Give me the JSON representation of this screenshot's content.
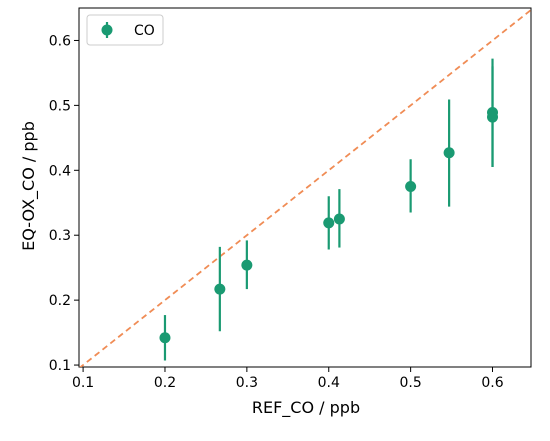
{
  "chart_data": {
    "type": "scatter",
    "title": "",
    "xlabel": "REF_CO / ppb",
    "ylabel": "EQ-OX_CO / ppb",
    "xlim": [
      0.095,
      0.647
    ],
    "ylim": [
      0.097,
      0.65
    ],
    "xticks": [
      0.1,
      0.2,
      0.3,
      0.4,
      0.5,
      0.6
    ],
    "yticks": [
      0.1,
      0.2,
      0.3,
      0.4,
      0.5,
      0.6
    ],
    "grid": false,
    "legend": {
      "position": "top-left",
      "entries": [
        "CO"
      ]
    },
    "series": [
      {
        "name": "CO",
        "color": "#1a9a72",
        "marker": "circle",
        "points": [
          {
            "x": 0.2,
            "y": 0.142,
            "ylow": 0.107,
            "yhigh": 0.177
          },
          {
            "x": 0.267,
            "y": 0.217,
            "ylow": 0.152,
            "yhigh": 0.282
          },
          {
            "x": 0.3,
            "y": 0.254,
            "ylow": 0.217,
            "yhigh": 0.292
          },
          {
            "x": 0.4,
            "y": 0.319,
            "ylow": 0.278,
            "yhigh": 0.36
          },
          {
            "x": 0.413,
            "y": 0.325,
            "ylow": 0.281,
            "yhigh": 0.371
          },
          {
            "x": 0.5,
            "y": 0.375,
            "ylow": 0.335,
            "yhigh": 0.417
          },
          {
            "x": 0.547,
            "y": 0.427,
            "ylow": 0.344,
            "yhigh": 0.509
          },
          {
            "x": 0.6,
            "y": 0.489,
            "ylow": 0.405,
            "yhigh": 0.572
          },
          {
            "x": 0.6,
            "y": 0.482,
            "ylow": 0.405,
            "yhigh": 0.56
          }
        ]
      }
    ],
    "reference_line": {
      "style": "dashed",
      "color": "#f08c55",
      "slope": 1,
      "intercept": 0
    }
  }
}
